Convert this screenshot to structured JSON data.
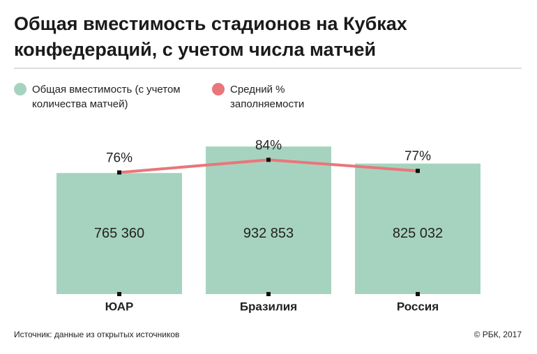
{
  "chart_data": {
    "type": "bar_line",
    "title": "Общая вместимость стадионов на Кубках конфедераций, с учетом числа матчей",
    "categories": [
      "ЮАР",
      "Бразилия",
      "Россия"
    ],
    "series": [
      {
        "name": "Общая вместимость (с учетом количества матчей)",
        "type": "bar",
        "color": "#a6d3bf",
        "values": [
          765360,
          932853,
          825032
        ],
        "value_labels": [
          "765 360",
          "932 853",
          "825 032"
        ]
      },
      {
        "name": "Средний % заполняемости",
        "type": "line",
        "axis": "y2",
        "color": "#e9767a",
        "values": [
          76,
          84,
          77
        ],
        "value_labels": [
          "76%",
          "84%",
          "77%"
        ]
      }
    ],
    "ylim": [
      0,
      1000000
    ],
    "y2lim": [
      0,
      100
    ],
    "source": "Источник: данные из открытых источников",
    "credit": "© РБК, 2017"
  }
}
